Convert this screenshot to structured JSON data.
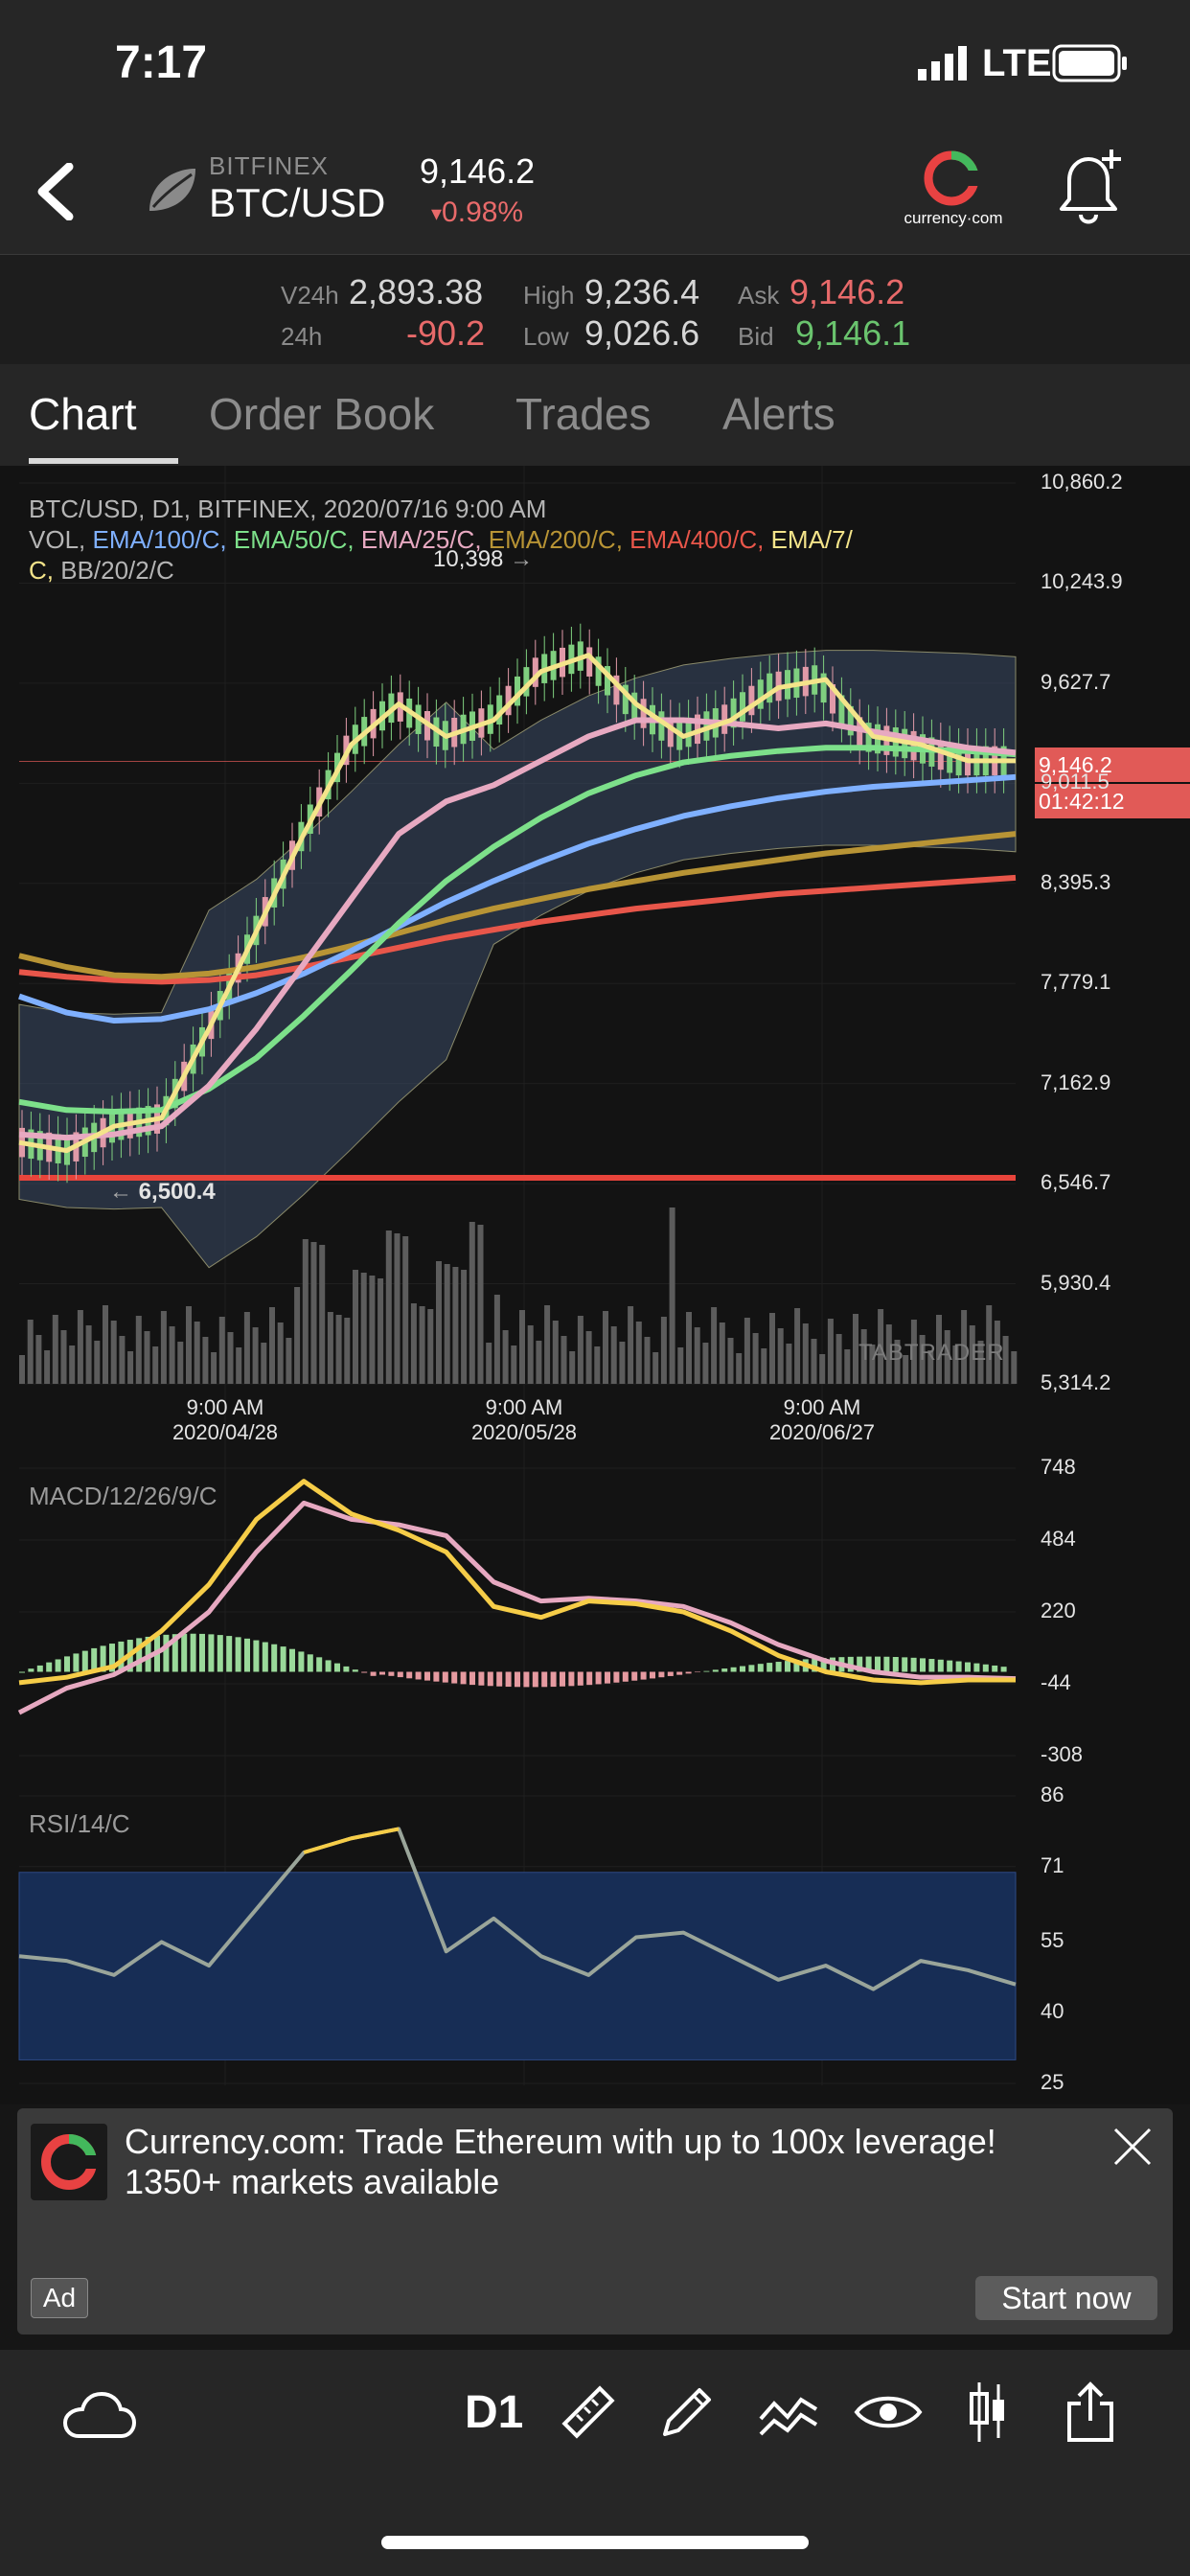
{
  "status_bar": {
    "time": "7:17",
    "network": "LTE"
  },
  "header": {
    "exchange": "BITFINEX",
    "pair": "BTC/USD",
    "last_price": "9,146.2",
    "change": "0.98%",
    "change_arrow": "▾"
  },
  "stats": {
    "v24h_label": "V24h",
    "v24h_value": "2,893.38",
    "h24_label": "24h",
    "h24_value": "-90.2",
    "high_label": "High",
    "high_value": "9,236.4",
    "low_label": "Low",
    "low_value": "9,026.6",
    "ask_label": "Ask",
    "ask_value": "9,146.2",
    "bid_label": "Bid",
    "bid_value": "9,146.1"
  },
  "tabs": [
    "Chart",
    "Order Book",
    "Trades",
    "Alerts"
  ],
  "chart": {
    "title": "BTC/USD, D1, BITFINEX, 2020/07/16 9:00 AM",
    "indicators": [
      {
        "label": "VOL,",
        "color": "#b5b5b5"
      },
      {
        "label": "EMA/100/C,",
        "color": "#7fb0ff"
      },
      {
        "label": "EMA/50/C,",
        "color": "#7de08a"
      },
      {
        "label": "EMA/25/C,",
        "color": "#e7a9c1"
      },
      {
        "label": "EMA/200/C,",
        "color": "#b89435"
      },
      {
        "label": "EMA/400/C,",
        "color": "#e8564a"
      },
      {
        "label": "EMA/7/",
        "color": "#f4e48a"
      }
    ],
    "indicators_line2": [
      {
        "label": "C,",
        "color": "#f4e48a"
      },
      {
        "label": "BB/20/2/C",
        "color": "#b5b5b5"
      }
    ],
    "high_marker": "10,398",
    "high_marker_arrow": "→",
    "low_marker": "6,500.4",
    "low_marker_arrow": "←",
    "price_tag": "9,146.2",
    "countdown_tag": "01:42:12",
    "watermark": "TABTRADER"
  },
  "chart_data": [
    {
      "type": "line",
      "title": "BTC/USD, D1, BITFINEX, 2020/07/16 9:00 AM",
      "y_ticks": [
        "10,860.2",
        "10,243.9",
        "9,627.7",
        "9,011.5",
        "8,395.3",
        "7,779.1",
        "7,162.9",
        "6,546.7",
        "5,930.4",
        "5,314.2"
      ],
      "x_ticks": [
        {
          "time": "9:00 AM",
          "date": "2020/04/28"
        },
        {
          "time": "9:00 AM",
          "date": "2020/05/28"
        },
        {
          "time": "9:00 AM",
          "date": "2020/06/27"
        }
      ],
      "ylim": [
        5314.2,
        10860.2
      ],
      "series": [
        {
          "name": "EMA/7/C",
          "color": "#f4e48a",
          "values": [
            6800,
            6750,
            6900,
            6950,
            7500,
            8100,
            8700,
            9250,
            9500,
            9300,
            9400,
            9700,
            9800,
            9500,
            9300,
            9400,
            9600,
            9650,
            9300,
            9250,
            9150,
            9150
          ]
        },
        {
          "name": "EMA/25/C",
          "color": "#e7a9c1",
          "values": [
            6850,
            6830,
            6850,
            6900,
            7150,
            7500,
            7900,
            8300,
            8700,
            8900,
            9000,
            9150,
            9300,
            9400,
            9400,
            9380,
            9350,
            9380,
            9330,
            9280,
            9230,
            9200
          ]
        },
        {
          "name": "EMA/50/C",
          "color": "#7de08a",
          "values": [
            7050,
            7000,
            6990,
            7000,
            7130,
            7320,
            7580,
            7860,
            8150,
            8410,
            8620,
            8800,
            8950,
            9060,
            9140,
            9180,
            9210,
            9230,
            9230,
            9220,
            9210,
            9190
          ]
        },
        {
          "name": "EMA/100/C",
          "color": "#7fb0ff",
          "values": [
            7700,
            7600,
            7550,
            7560,
            7620,
            7720,
            7840,
            7980,
            8130,
            8280,
            8410,
            8530,
            8640,
            8730,
            8810,
            8870,
            8920,
            8960,
            8990,
            9010,
            9030,
            9050
          ]
        },
        {
          "name": "EMA/200/C",
          "color": "#b89435",
          "values": [
            7950,
            7880,
            7830,
            7820,
            7840,
            7880,
            7940,
            8010,
            8090,
            8170,
            8240,
            8300,
            8360,
            8410,
            8460,
            8500,
            8540,
            8580,
            8610,
            8640,
            8670,
            8700
          ]
        },
        {
          "name": "EMA/400/C",
          "color": "#e8564a",
          "values": [
            7850,
            7820,
            7800,
            7790,
            7800,
            7830,
            7880,
            7940,
            8000,
            8060,
            8110,
            8160,
            8200,
            8240,
            8270,
            8300,
            8330,
            8350,
            8370,
            8390,
            8410,
            8430
          ]
        }
      ]
    },
    {
      "type": "line",
      "title": "MACD/12/26/9/C",
      "y_ticks": [
        "748",
        "484",
        "220",
        "-44",
        "-308"
      ],
      "ylim": [
        -308,
        748
      ],
      "series": [
        {
          "name": "MACD",
          "color": "#f6cd48",
          "values": [
            -40,
            -20,
            20,
            150,
            320,
            560,
            700,
            580,
            520,
            440,
            240,
            200,
            260,
            250,
            220,
            150,
            60,
            0,
            -30,
            -40,
            -30,
            -30
          ]
        },
        {
          "name": "Signal",
          "color": "#e7a9c1",
          "values": [
            -150,
            -60,
            -10,
            80,
            220,
            440,
            620,
            560,
            540,
            500,
            330,
            260,
            270,
            260,
            240,
            180,
            100,
            40,
            0,
            -20,
            -20,
            -25
          ]
        }
      ]
    },
    {
      "type": "line",
      "title": "RSI/14/C",
      "y_ticks": [
        "86",
        "71",
        "55",
        "40",
        "25"
      ],
      "ylim": [
        25,
        86
      ],
      "series": [
        {
          "name": "RSI",
          "values": [
            52,
            51,
            48,
            55,
            50,
            62,
            74,
            77,
            79,
            53,
            60,
            52,
            48,
            56,
            57,
            52,
            47,
            50,
            45,
            51,
            49,
            46
          ]
        }
      ]
    }
  ],
  "macd_label": "MACD/12/26/9/C",
  "rsi_label": "RSI/14/C",
  "ad": {
    "text": "Currency.com: Trade Ethereum with up to 100x leverage! 1350+ markets available",
    "badge": "Ad",
    "cta": "Start now",
    "brand": "currency·com"
  },
  "toolbar": {
    "timeframe": "D1"
  },
  "icons": [
    "back-arrow-icon",
    "exchange-logo-icon",
    "currency-com-logo-icon",
    "bell-plus-icon",
    "cloud-icon",
    "ruler-icon",
    "pencil-icon",
    "indicators-icon",
    "eye-icon",
    "candles-icon",
    "share-icon",
    "close-icon",
    "signal-icon",
    "battery-icon"
  ]
}
